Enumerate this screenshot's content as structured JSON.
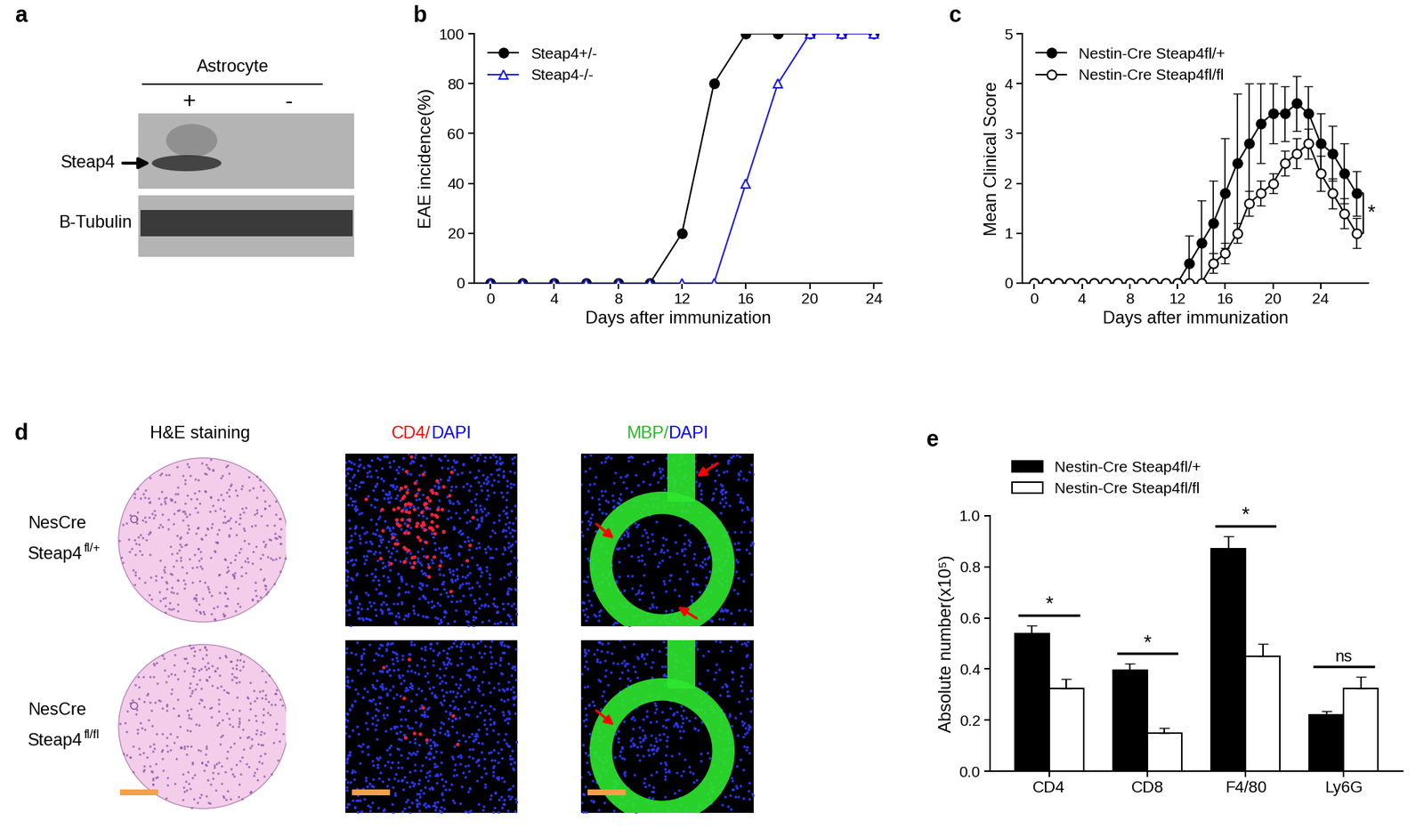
{
  "blot": {
    "panel": "a",
    "header": "Astrocyte",
    "lanes": [
      "+",
      "-"
    ],
    "bands": [
      "Steap4",
      "B-Tubulin"
    ]
  },
  "histology": {
    "panel": "d",
    "columns": [
      [
        {
          "text": "H&E staining",
          "color": "#000000"
        }
      ],
      [
        {
          "text": "CD4/",
          "color": "#ff0000"
        },
        {
          "text": "DAPI",
          "color": "#0000ff"
        }
      ],
      [
        {
          "text": "MBP/",
          "color": "#22bb22"
        },
        {
          "text": "DAPI",
          "color": "#0000ff"
        }
      ]
    ],
    "rows": [
      {
        "lines": [
          "NesCre",
          "Steap4"
        ],
        "sup": "fl/+"
      },
      {
        "lines": [
          "NesCre",
          "Steap4"
        ],
        "sup": "fl/fl"
      }
    ]
  },
  "chart_data": [
    {
      "panel": "b",
      "type": "line",
      "x": [
        0,
        2,
        4,
        6,
        8,
        10,
        12,
        14,
        16,
        18,
        20,
        22,
        24
      ],
      "series": [
        {
          "name": "Steap4+/-",
          "color": "#000000",
          "marker": "circle",
          "values": [
            0,
            0,
            0,
            0,
            0,
            0,
            20,
            80,
            100,
            100,
            100,
            100,
            100
          ]
        },
        {
          "name": "Steap4-/-",
          "color": "#1a1adb",
          "marker": "open_triangle",
          "values": [
            0,
            0,
            0,
            0,
            0,
            0,
            0,
            0,
            40,
            80,
            100,
            100,
            100
          ]
        }
      ],
      "xlabel": "Days after immunization",
      "ylabel": "EAE incidence(%)",
      "xlim": [
        -1,
        24.5
      ],
      "ylim": [
        0,
        100
      ],
      "xticks": [
        0,
        4,
        8,
        12,
        16,
        20,
        24
      ],
      "yticks": [
        0,
        20,
        40,
        60,
        80,
        100
      ],
      "legend": "upper left"
    },
    {
      "panel": "c",
      "type": "line",
      "x": [
        0,
        1,
        2,
        3,
        4,
        5,
        6,
        7,
        8,
        9,
        10,
        11,
        12,
        13,
        14,
        15,
        16,
        17,
        18,
        19,
        20,
        21,
        22,
        23,
        24,
        25,
        26,
        27
      ],
      "series": [
        {
          "name": "Nestin-Cre Steap4fl/+",
          "color": "#000000",
          "marker": "circle",
          "values": [
            0,
            0,
            0,
            0,
            0,
            0,
            0,
            0,
            0,
            0,
            0,
            0,
            0,
            0.4,
            0.8,
            1.2,
            1.8,
            2.4,
            2.8,
            3.2,
            3.4,
            3.4,
            3.6,
            3.4,
            2.8,
            2.6,
            2.2,
            1.8
          ],
          "errors": [
            0,
            0,
            0,
            0,
            0,
            0,
            0,
            0,
            0,
            0,
            0,
            0,
            0,
            0.55,
            0.85,
            0.85,
            1.1,
            1.4,
            1.2,
            0.8,
            0.6,
            0.55,
            0.55,
            0.55,
            0.6,
            0.55,
            0.6,
            0.45
          ]
        },
        {
          "name": "Nestin-Cre Steap4fl/fl",
          "color": "#000000",
          "marker": "open_circle",
          "values": [
            0,
            0,
            0,
            0,
            0,
            0,
            0,
            0,
            0,
            0,
            0,
            0,
            0,
            0,
            0,
            0.4,
            0.6,
            1.0,
            1.6,
            1.8,
            2.0,
            2.4,
            2.6,
            2.8,
            2.2,
            1.8,
            1.4,
            1.0
          ],
          "errors": [
            0,
            0,
            0,
            0,
            0,
            0,
            0,
            0,
            0,
            0,
            0,
            0,
            0,
            0,
            0,
            0.2,
            0.2,
            0.2,
            0.25,
            0.25,
            0.2,
            0.25,
            0.3,
            0.3,
            0.35,
            0.3,
            0.3,
            0.3
          ]
        }
      ],
      "xlabel": "Days after immunization",
      "ylabel": "Mean Clinical Score",
      "xlim": [
        -1,
        28
      ],
      "ylim": [
        0,
        5
      ],
      "xticks": [
        0,
        4,
        8,
        12,
        16,
        20,
        24
      ],
      "yticks": [
        0,
        1,
        2,
        3,
        4,
        5
      ],
      "legend": "upper left",
      "annotation": "*"
    },
    {
      "panel": "e",
      "type": "bar",
      "categories": [
        "CD4",
        "CD8",
        "F4/80",
        "Ly6G"
      ],
      "series": [
        {
          "name": "Nestin-Cre Steap4fl/+",
          "color": "#000000",
          "values": [
            0.54,
            0.395,
            0.87,
            0.22
          ],
          "errors": [
            0.03,
            0.025,
            0.05,
            0.015
          ]
        },
        {
          "name": "Nestin-Cre Steap4fl/fl",
          "color": "#ffffff",
          "values": [
            0.325,
            0.15,
            0.45,
            0.325
          ],
          "errors": [
            0.035,
            0.02,
            0.05,
            0.045
          ]
        }
      ],
      "ylabel": "Absolute number(x10⁵)",
      "ylim": [
        0,
        1.0
      ],
      "yticks": [
        {
          "value": 0,
          "label": "0.0"
        },
        0.2,
        0.4,
        0.6,
        0.8,
        1.0
      ],
      "legend": "upper left",
      "significance": [
        "*",
        "*",
        "*",
        "ns"
      ]
    }
  ]
}
